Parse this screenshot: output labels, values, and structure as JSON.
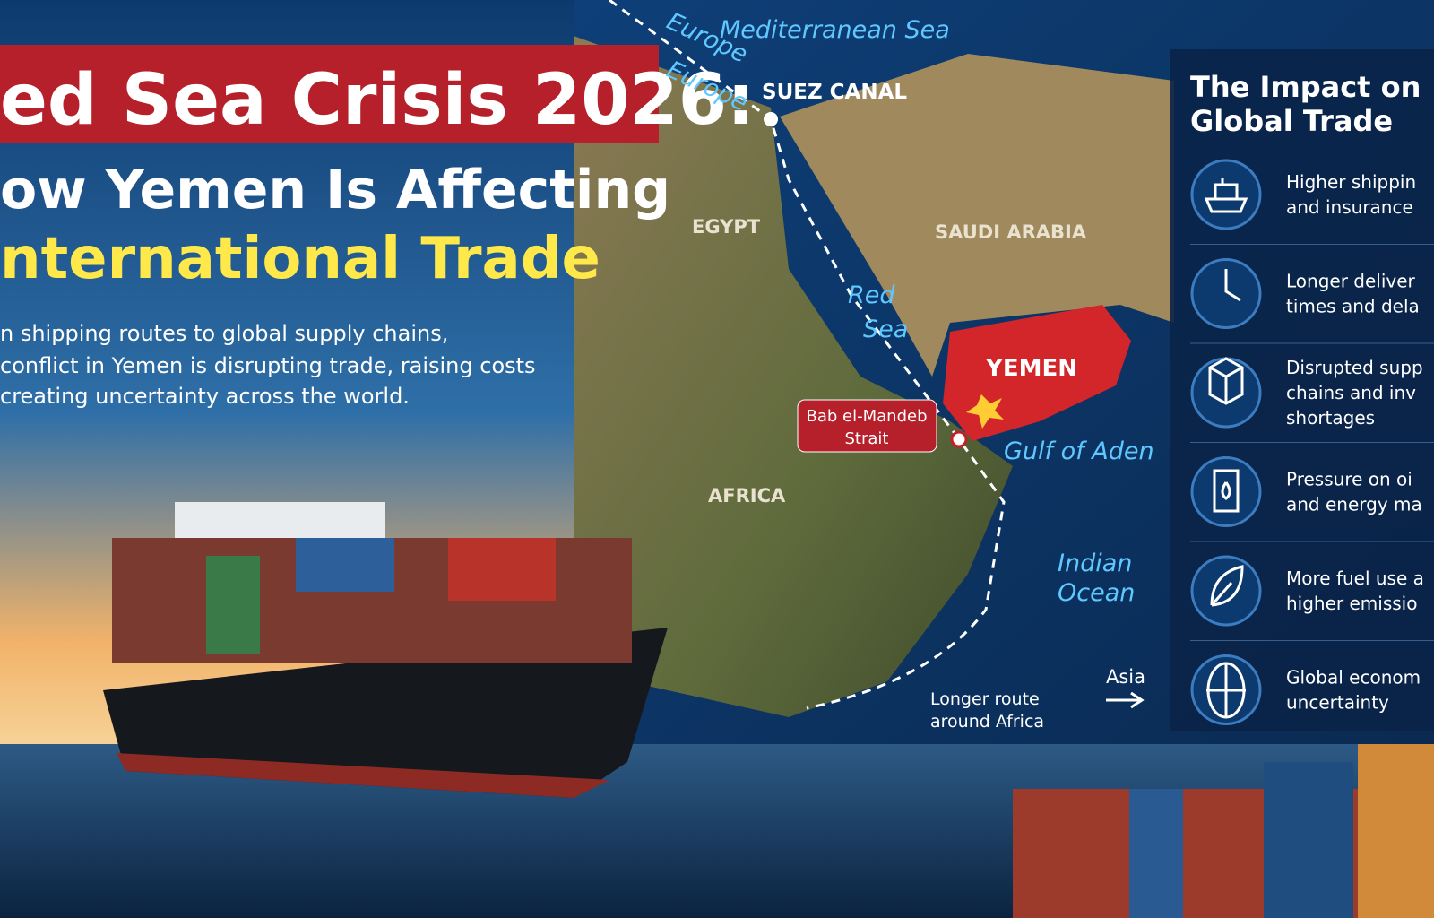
{
  "header": {
    "title_lines": [
      "ed Sea Crisis 2026:",
      "ow Yemen Is Affecting",
      "nternational Trade"
    ],
    "intro_lines": [
      "n shipping routes to global supply chains,",
      "conflict in Yemen is disrupting trade, raising costs",
      "creating uncertainty across the world."
    ]
  },
  "map": {
    "labels": {
      "europe_top": "Europe",
      "europe_bottom": "Europe",
      "mediterranean": "Mediterranean Sea",
      "suez": "SUEZ CANAL",
      "egypt": "EGYPT",
      "saudi": "SAUDI ARABIA",
      "red_sea": [
        "Red",
        "Sea"
      ],
      "yemen": "YEMEN",
      "bab": [
        "Bab el-Mandeb",
        "Strait"
      ],
      "aden": "Gulf of Aden",
      "africa": "AFRICA",
      "indian": [
        "Indian",
        "Ocean"
      ],
      "longer_route": [
        "Longer route",
        "around Africa"
      ],
      "asia": "Asia"
    }
  },
  "impact_panel": {
    "title_lines": [
      "The Impact on",
      "Global Trade"
    ],
    "items": [
      {
        "lines": [
          "Higher shippin",
          "and insurance"
        ]
      },
      {
        "lines": [
          "Longer deliver",
          "times and dela"
        ]
      },
      {
        "lines": [
          "Disrupted supp",
          "chains and inv",
          "shortages"
        ]
      },
      {
        "lines": [
          "Pressure on oi",
          "and energy ma"
        ]
      },
      {
        "lines": [
          "More fuel use a",
          "higher emissio"
        ]
      },
      {
        "lines": [
          "Global econom",
          "uncertainty"
        ]
      }
    ]
  }
}
